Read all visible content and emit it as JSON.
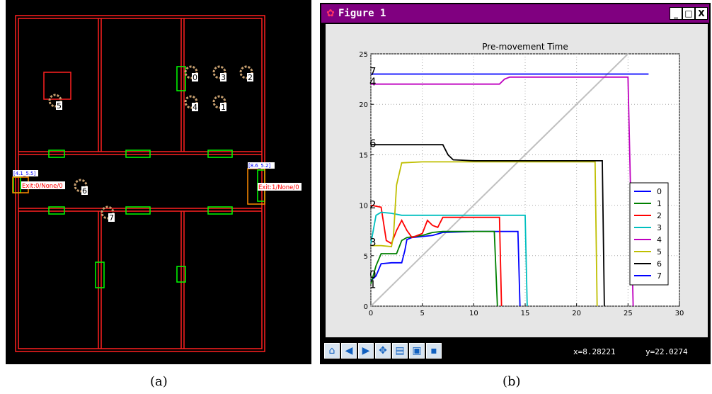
{
  "captions": {
    "a": "(a)",
    "b": "(b)"
  },
  "floorplan": {
    "agents": [
      "0",
      "3",
      "2",
      "4",
      "1",
      "5",
      "6",
      "7"
    ],
    "exit0_label": "Exit:0/None/0",
    "exit1_label": "Exit:1/None/0",
    "exit0_tag": "[4.1_5.5]",
    "exit1_tag": "[8.6_5.2]",
    "colors": {
      "wall": "#ff2020",
      "door": "#00ff00",
      "exit_box": "#ff8c00",
      "agent_ring": "#c8a070"
    }
  },
  "window": {
    "title": "Figure 1",
    "buttons": {
      "minimize": "_",
      "maximize": "□",
      "close": "X"
    },
    "toolbar_icons": [
      "home-icon",
      "back-icon",
      "forward-icon",
      "pan-icon",
      "subplots-icon",
      "zoom-icon",
      "save-icon"
    ],
    "coord_x": "x=8.28221",
    "coord_y": "y=22.0274"
  },
  "chart_data": {
    "type": "line",
    "title": "Pre-movement Time",
    "xlabel": "",
    "ylabel": "",
    "xlim": [
      0,
      30
    ],
    "ylim": [
      0,
      25
    ],
    "xticks": [
      "0",
      "5",
      "10",
      "15",
      "20",
      "25",
      "30"
    ],
    "yticks": [
      "0",
      "5",
      "10",
      "15",
      "20",
      "25"
    ],
    "grid": true,
    "legend_position": "lower-right",
    "series": [
      {
        "name": "0",
        "color": "#0000ff",
        "points": [
          [
            0,
            2.5
          ],
          [
            0.5,
            3
          ],
          [
            1,
            4.2
          ],
          [
            2,
            4.3
          ],
          [
            3,
            4.3
          ],
          [
            3.3,
            5.5
          ],
          [
            3.5,
            6.6
          ],
          [
            4,
            6.8
          ],
          [
            6,
            7
          ],
          [
            7,
            7.3
          ],
          [
            10,
            7.4
          ],
          [
            14.3,
            7.4
          ],
          [
            14.5,
            0
          ]
        ]
      },
      {
        "name": "1",
        "color": "#008000",
        "points": [
          [
            0,
            2.2
          ],
          [
            0.5,
            4
          ],
          [
            1,
            5.2
          ],
          [
            2,
            5.2
          ],
          [
            2.5,
            5.2
          ],
          [
            3,
            6.5
          ],
          [
            3.5,
            6.8
          ],
          [
            5,
            7
          ],
          [
            6,
            7.3
          ],
          [
            7,
            7.4
          ],
          [
            12,
            7.4
          ],
          [
            12.3,
            0
          ]
        ]
      },
      {
        "name": "2",
        "color": "#ff0000",
        "points": [
          [
            0,
            10
          ],
          [
            1,
            9.8
          ],
          [
            1.5,
            6.5
          ],
          [
            2,
            6.2
          ],
          [
            2.5,
            7.5
          ],
          [
            3,
            8.5
          ],
          [
            3.5,
            7.5
          ],
          [
            4,
            6.8
          ],
          [
            5,
            7.2
          ],
          [
            5.5,
            8.5
          ],
          [
            6,
            8.0
          ],
          [
            6.5,
            7.8
          ],
          [
            7,
            8.8
          ],
          [
            12.5,
            8.8
          ],
          [
            12.7,
            0
          ]
        ]
      },
      {
        "name": "3",
        "color": "#00bfbf",
        "points": [
          [
            0,
            6.2
          ],
          [
            0.5,
            9
          ],
          [
            1,
            9.3
          ],
          [
            2,
            9.2
          ],
          [
            3,
            9
          ],
          [
            5,
            9
          ],
          [
            15,
            9
          ],
          [
            15.2,
            0
          ]
        ]
      },
      {
        "name": "4",
        "color": "#bf00bf",
        "points": [
          [
            0,
            22
          ],
          [
            12,
            22
          ],
          [
            12.5,
            22
          ],
          [
            13,
            22.5
          ],
          [
            13.5,
            22.7
          ],
          [
            25,
            22.7
          ],
          [
            25.5,
            0
          ]
        ]
      },
      {
        "name": "5",
        "color": "#bfbf00",
        "points": [
          [
            0,
            6
          ],
          [
            1,
            6
          ],
          [
            2,
            5.9
          ],
          [
            2.2,
            7
          ],
          [
            2.5,
            12
          ],
          [
            3,
            14.2
          ],
          [
            5,
            14.3
          ],
          [
            15,
            14.3
          ],
          [
            21.8,
            14.3
          ],
          [
            22,
            0
          ]
        ]
      },
      {
        "name": "6",
        "color": "#000000",
        "points": [
          [
            0,
            16
          ],
          [
            5,
            16
          ],
          [
            7,
            16
          ],
          [
            7.5,
            15
          ],
          [
            8,
            14.5
          ],
          [
            10,
            14.4
          ],
          [
            15,
            14.4
          ],
          [
            22.5,
            14.4
          ],
          [
            22.7,
            0
          ]
        ]
      },
      {
        "name": "7",
        "color": "#0000ff",
        "points": [
          [
            0,
            23
          ],
          [
            10,
            23
          ],
          [
            20,
            23
          ],
          [
            27,
            23
          ]
        ]
      }
    ],
    "diagonal": {
      "color": "#c0c0c0",
      "from": [
        0,
        0
      ],
      "to": [
        25,
        25
      ]
    },
    "annotations": [
      "7",
      "4",
      "6",
      "2",
      "3",
      "0",
      "1"
    ]
  }
}
